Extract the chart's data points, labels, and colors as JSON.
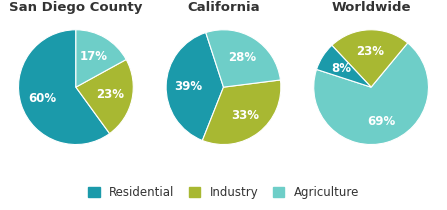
{
  "charts": [
    {
      "title": "San Diego County",
      "slices": [
        60,
        23,
        17
      ],
      "labels": [
        "60%",
        "23%",
        "17%"
      ],
      "colors": [
        "#1b9aaa",
        "#a8b832",
        "#6ecec8"
      ],
      "startangle": 90
    },
    {
      "title": "California",
      "slices": [
        39,
        33,
        28
      ],
      "labels": [
        "39%",
        "33%",
        "28%"
      ],
      "colors": [
        "#1b9aaa",
        "#a8b832",
        "#6ecec8"
      ],
      "startangle": 108
    },
    {
      "title": "Worldwide",
      "slices": [
        69,
        23,
        8
      ],
      "labels": [
        "69%",
        "23%",
        "8%"
      ],
      "colors": [
        "#6ecec8",
        "#a8b832",
        "#1b9aaa"
      ],
      "startangle": 162
    }
  ],
  "legend_items": [
    {
      "label": "Residential",
      "color": "#1b9aaa"
    },
    {
      "label": "Industry",
      "color": "#a8b832"
    },
    {
      "label": "Agriculture",
      "color": "#6ecec8"
    }
  ],
  "background_color": "#ffffff",
  "text_color": "#ffffff",
  "title_color": "#333333",
  "title_fontsize": 9.5,
  "label_fontsize": 8.5,
  "legend_fontsize": 8.5
}
